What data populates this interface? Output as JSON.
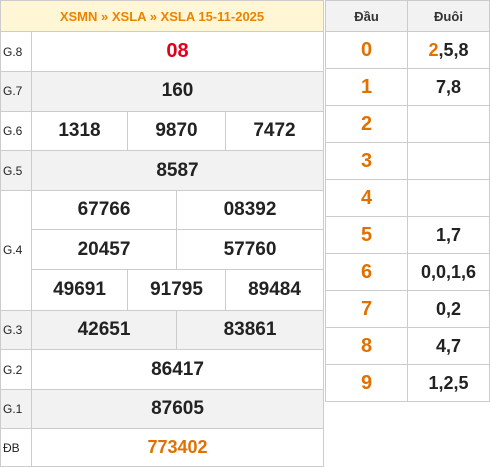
{
  "header": {
    "crumb_1": "XSMN",
    "sep_1": " » ",
    "crumb_2": "XSLA",
    "sep_2": " » ",
    "crumb_3": "XSLA 15-11-2025"
  },
  "prizes": {
    "g8": {
      "label": "G.8",
      "values": [
        "08"
      ]
    },
    "g7": {
      "label": "G.7",
      "values": [
        "160"
      ]
    },
    "g6": {
      "label": "G.6",
      "values": [
        "1318",
        "9870",
        "7472"
      ]
    },
    "g5": {
      "label": "G.5",
      "values": [
        "8587"
      ]
    },
    "g4": {
      "label": "G.4",
      "values": [
        "67766",
        "08392",
        "20457",
        "57760",
        "49691",
        "91795",
        "89484"
      ]
    },
    "g3": {
      "label": "G.3",
      "values": [
        "42651",
        "83861"
      ]
    },
    "g2": {
      "label": "G.2",
      "values": [
        "86417"
      ]
    },
    "g1": {
      "label": "G.1",
      "values": [
        "87605"
      ]
    },
    "db": {
      "label": "ĐB",
      "values": [
        "773402"
      ]
    }
  },
  "tails": {
    "head_label": "Đầu",
    "tail_label": "Đuôi",
    "rows": [
      {
        "head": "0",
        "tail_hl": "2",
        "tail": ",5,8"
      },
      {
        "head": "1",
        "tail_hl": "",
        "tail": "7,8"
      },
      {
        "head": "2",
        "tail_hl": "",
        "tail": ""
      },
      {
        "head": "3",
        "tail_hl": "",
        "tail": ""
      },
      {
        "head": "4",
        "tail_hl": "",
        "tail": ""
      },
      {
        "head": "5",
        "tail_hl": "",
        "tail": "1,7"
      },
      {
        "head": "6",
        "tail_hl": "",
        "tail": "0,0,1,6"
      },
      {
        "head": "7",
        "tail_hl": "",
        "tail": "0,2"
      },
      {
        "head": "8",
        "tail_hl": "",
        "tail": "4,7"
      },
      {
        "head": "9",
        "tail_hl": "",
        "tail": "1,2,5"
      }
    ]
  },
  "colors": {
    "accent_orange": "#e07000",
    "special_red": "#e0001b",
    "header_bg": "#fff6d5",
    "stripe_bg": "#f2f2f2"
  }
}
